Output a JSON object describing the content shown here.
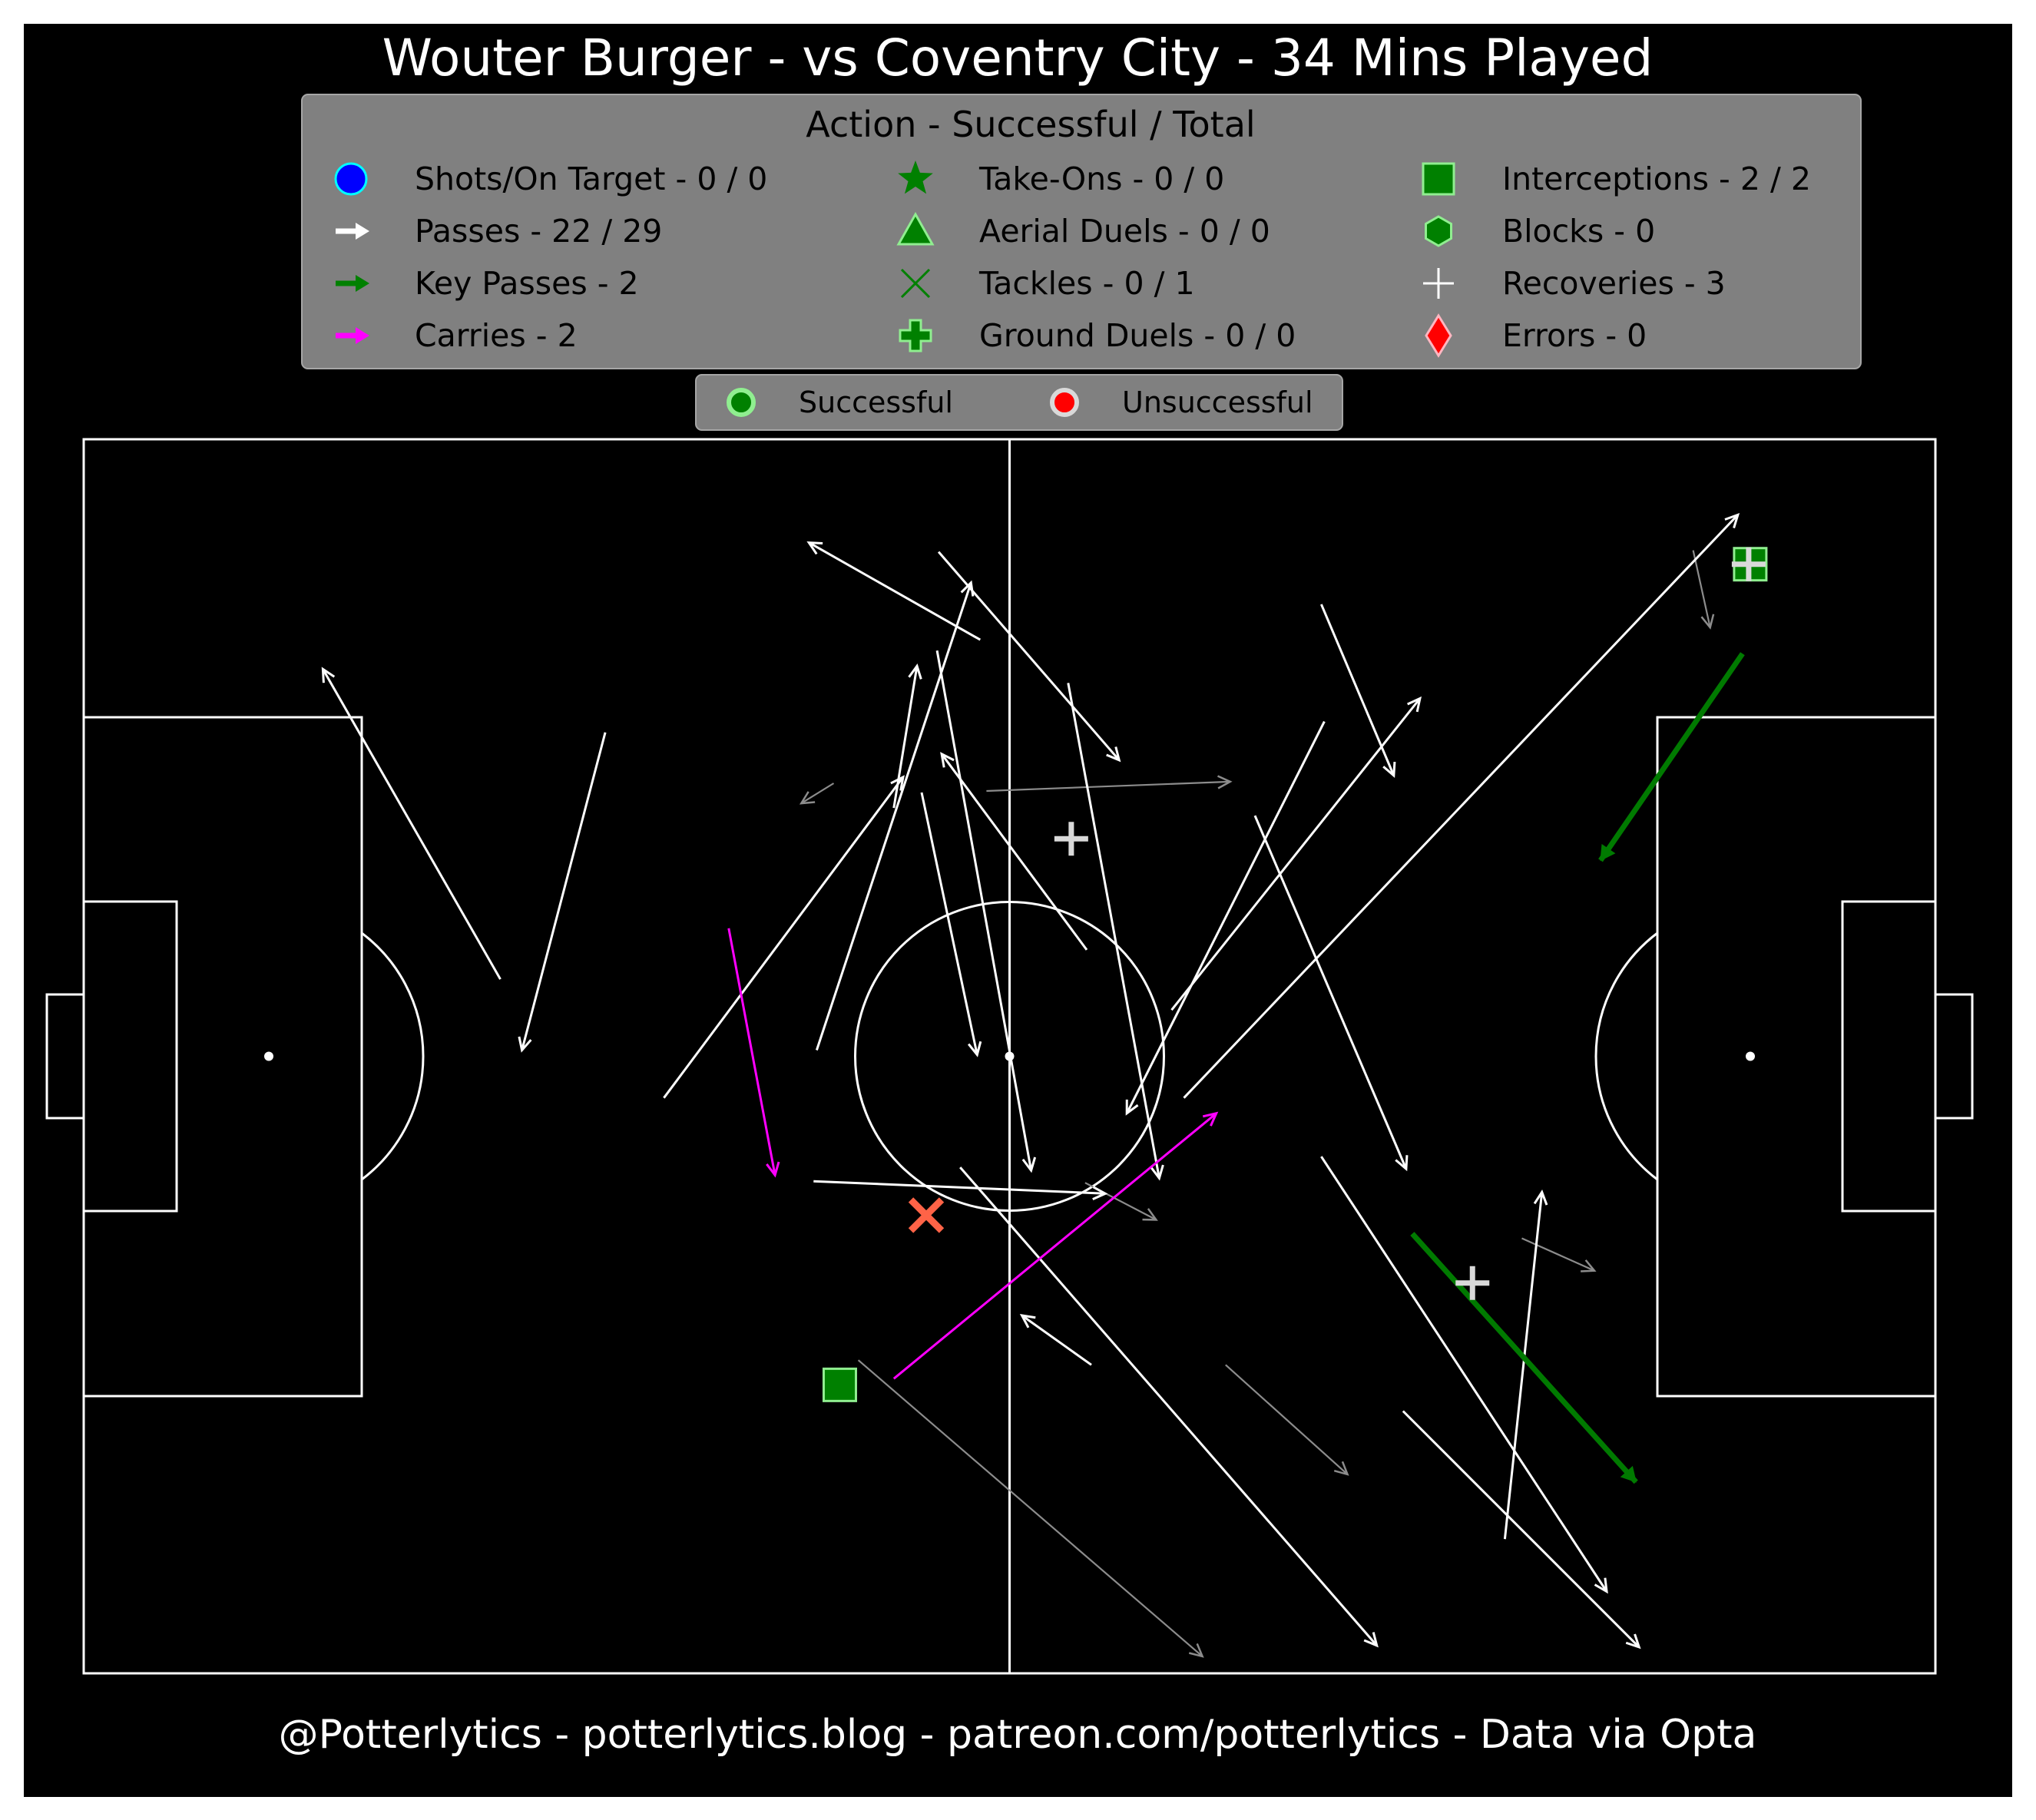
{
  "chart_data": {
    "type": "scatter",
    "title": "Wouter Burger - vs Coventry City - 34 Mins Played",
    "footer": "@Potterlytics - potterlytics.blog - patreon.com/potterlytics - Data via Opta",
    "pitch": {
      "length": 120,
      "width": 80
    },
    "legend": {
      "title": "Action - Successful / Total",
      "items": [
        {
          "id": "shots",
          "label": "Shots/On Target - 0 / 0",
          "marker": "circle",
          "color": "#0000ff"
        },
        {
          "id": "passes",
          "label": "Passes - 22 / 29",
          "marker": "arrow",
          "color": "#ffffff"
        },
        {
          "id": "key-passes",
          "label": "Key Passes - 2",
          "marker": "arrow",
          "color": "#008000"
        },
        {
          "id": "carries",
          "label": "Carries - 2",
          "marker": "arrow",
          "color": "#ff00ff"
        },
        {
          "id": "take-ons",
          "label": "Take-Ons - 0 / 0",
          "marker": "star",
          "color": "#008000"
        },
        {
          "id": "aerial-duels",
          "label": "Aerial Duels - 0 / 0",
          "marker": "triangle",
          "color": "#008000"
        },
        {
          "id": "tackles",
          "label": "Tackles - 0 / 1",
          "marker": "x",
          "color": "#008000"
        },
        {
          "id": "ground-duels",
          "label": "Ground Duels - 0 / 0",
          "marker": "plus-filled",
          "color": "#008000"
        },
        {
          "id": "interceptions",
          "label": "Interceptions - 2 / 2",
          "marker": "square",
          "color": "#008000"
        },
        {
          "id": "blocks",
          "label": "Blocks - 0",
          "marker": "hexagon",
          "color": "#008000"
        },
        {
          "id": "recoveries",
          "label": "Recoveries - 3",
          "marker": "plus-thin",
          "color": "#ffffff"
        },
        {
          "id": "errors",
          "label": "Errors - 0",
          "marker": "diamond",
          "color": "#ff0000"
        }
      ]
    },
    "outcome_legend": [
      {
        "label": "Successful",
        "color": "#008000"
      },
      {
        "label": "Unsuccessful",
        "color": "#ff0000"
      }
    ],
    "passes_successful": [
      {
        "from": [
          27,
          45
        ],
        "to": [
          15.5,
          65.1
        ]
      },
      {
        "from": [
          33.8,
          61
        ],
        "to": [
          28.4,
          40.4
        ]
      },
      {
        "from": [
          52.5,
          56.1
        ],
        "to": [
          54,
          65.3
        ]
      },
      {
        "from": [
          47.5,
          40.4
        ],
        "to": [
          57.5,
          70.7
        ]
      },
      {
        "from": [
          54.3,
          57.1
        ],
        "to": [
          57.9,
          40.1
        ]
      },
      {
        "from": [
          55.3,
          66.3
        ],
        "to": [
          61.4,
          32.6
        ]
      },
      {
        "from": [
          37.6,
          37.3
        ],
        "to": [
          53.1,
          58.1
        ]
      },
      {
        "from": [
          58.1,
          67
        ],
        "to": [
          47,
          73.3
        ]
      },
      {
        "from": [
          65,
          46.9
        ],
        "to": [
          55.6,
          59.6
        ]
      },
      {
        "from": [
          55.4,
          72.7
        ],
        "to": [
          67.1,
          59.2
        ]
      },
      {
        "from": [
          65.3,
          20
        ],
        "to": [
          60.8,
          23.2
        ]
      },
      {
        "from": [
          70.5,
          43
        ],
        "to": [
          86.6,
          63.2
        ]
      },
      {
        "from": [
          56.8,
          32.8
        ],
        "to": [
          83.8,
          1.8
        ]
      },
      {
        "from": [
          63.8,
          64.2
        ],
        "to": [
          69.7,
          32.1
        ]
      },
      {
        "from": [
          75.9,
          55.6
        ],
        "to": [
          85.7,
          32.7
        ]
      },
      {
        "from": [
          80.4,
          61.7
        ],
        "to": [
          67.6,
          36.3
        ]
      },
      {
        "from": [
          80.2,
          69.3
        ],
        "to": [
          84.9,
          58.2
        ]
      },
      {
        "from": [
          71.3,
          37.3
        ],
        "to": [
          107.2,
          75.1
        ]
      },
      {
        "from": [
          85.5,
          17
        ],
        "to": [
          100.8,
          1.7
        ]
      },
      {
        "from": [
          80.2,
          33.5
        ],
        "to": [
          98.7,
          5.3
        ]
      },
      {
        "from": [
          92.1,
          8.7
        ],
        "to": [
          94.5,
          31.2
        ]
      },
      {
        "from": [
          47.3,
          31.9
        ],
        "to": [
          66.2,
          31.1
        ]
      }
    ],
    "passes_unsuccessful": [
      {
        "from": [
          58.5,
          57.2
        ],
        "to": [
          74.3,
          57.8
        ]
      },
      {
        "from": [
          48.6,
          57.7
        ],
        "to": [
          46.5,
          56.4
        ]
      },
      {
        "from": [
          64.9,
          31.8
        ],
        "to": [
          69.5,
          29.4
        ]
      },
      {
        "from": [
          74,
          20
        ],
        "to": [
          81.9,
          12.9
        ]
      },
      {
        "from": [
          93.2,
          28.2
        ],
        "to": [
          97.9,
          26.1
        ]
      },
      {
        "from": [
          50.2,
          20.3
        ],
        "to": [
          72.5,
          1.1
        ]
      },
      {
        "from": [
          104.3,
          72.8
        ],
        "to": [
          105.4,
          67.8
        ]
      }
    ],
    "key_passes": [
      {
        "from": [
          107.5,
          66.1
        ],
        "to": [
          98.3,
          52.7
        ]
      },
      {
        "from": [
          86.1,
          28.5
        ],
        "to": [
          100.6,
          12.4
        ]
      }
    ],
    "carries": [
      {
        "from": [
          41.8,
          48.3
        ],
        "to": [
          44.8,
          32.3
        ]
      },
      {
        "from": [
          52.5,
          19.1
        ],
        "to": [
          73.4,
          36.3
        ]
      }
    ],
    "tackles": [
      {
        "at": [
          54.6,
          29.7
        ],
        "successful": false
      }
    ],
    "interceptions": [
      {
        "at": [
          49,
          18.7
        ],
        "successful": true
      },
      {
        "at": [
          108,
          71.9
        ],
        "successful": true
      }
    ],
    "recoveries": [
      {
        "at": [
          64,
          54.1
        ]
      },
      {
        "at": [
          90,
          25.3
        ]
      },
      {
        "at": [
          107.9,
          71.9
        ]
      }
    ]
  }
}
